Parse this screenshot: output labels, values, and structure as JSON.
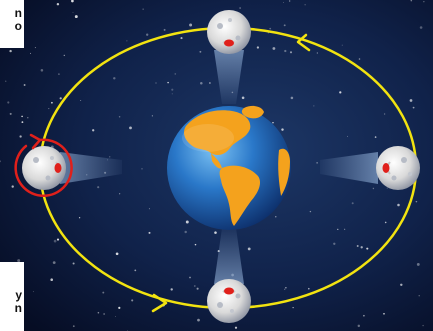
{
  "labels": {
    "top_fragment": [
      "n",
      "o"
    ],
    "bottom_fragment": [
      "y",
      "n"
    ]
  },
  "colors": {
    "space": "#0b1838",
    "orbit": "#f2e310",
    "earth_ocean": "#2a78c9",
    "land": "#f4a21d",
    "moon": "#e6e6e6",
    "rotation_marker": "#e0201b"
  },
  "icons": [
    "earth-icon",
    "moon-icon",
    "orbit-direction-arrow-icon",
    "rotation-arrow-icon"
  ]
}
